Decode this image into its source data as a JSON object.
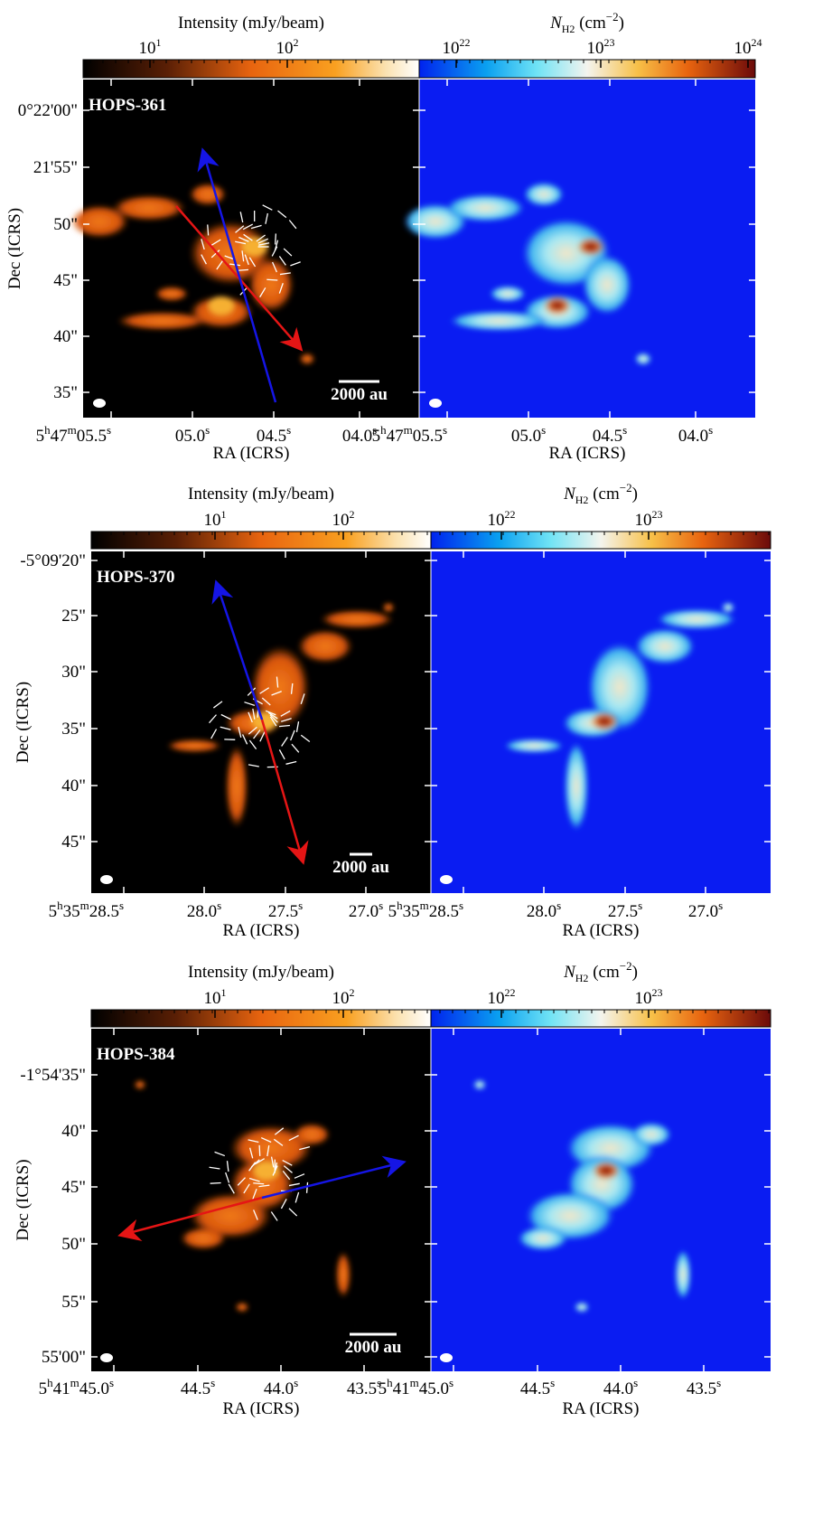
{
  "rows": [
    {
      "name": "HOPS-361",
      "scale_bar": "2000 au",
      "left_colorbar": {
        "label": "Intensity (mJy/beam)",
        "ticks": [
          {
            "base": "10",
            "exp": "1"
          },
          {
            "base": "10",
            "exp": "2"
          }
        ]
      },
      "right_colorbar": {
        "symbol": "N",
        "sub": "H2",
        "unit": " (cm",
        "unit_exp": "−2",
        "close": ")",
        "ticks": [
          {
            "base": "10",
            "exp": "22"
          },
          {
            "base": "10",
            "exp": "23"
          },
          {
            "base": "10",
            "exp": "24"
          }
        ]
      },
      "dec_label": "Dec (ICRS)",
      "ra_label": "RA (ICRS)",
      "dec_ticks": [
        "0°22'00\"",
        "21'55\"",
        "50\"",
        "45\"",
        "40\"",
        "35\""
      ],
      "ra_ticks": [
        [
          {
            "t": "5",
            "sup": "h"
          },
          {
            "t": "47",
            "sup": "m"
          },
          {
            "t": "05.5",
            "sup": "s"
          }
        ],
        [
          {
            "t": "05.0",
            "sup": "s"
          }
        ],
        [
          {
            "t": "04.5",
            "sup": "s"
          }
        ],
        [
          {
            "t": "04.0",
            "sup": "s"
          }
        ]
      ]
    },
    {
      "name": "HOPS-370",
      "scale_bar": "2000 au",
      "left_colorbar": {
        "label": "Intensity (mJy/beam)",
        "ticks": [
          {
            "base": "10",
            "exp": "1"
          },
          {
            "base": "10",
            "exp": "2"
          }
        ]
      },
      "right_colorbar": {
        "symbol": "N",
        "sub": "H2",
        "unit": " (cm",
        "unit_exp": "−2",
        "close": ")",
        "ticks": [
          {
            "base": "10",
            "exp": "22"
          },
          {
            "base": "10",
            "exp": "23"
          }
        ]
      },
      "dec_label": "Dec (ICRS)",
      "ra_label": "RA (ICRS)",
      "dec_ticks": [
        "-5°09'20\"",
        "25\"",
        "30\"",
        "35\"",
        "40\"",
        "45\""
      ],
      "ra_ticks": [
        [
          {
            "t": "5",
            "sup": "h"
          },
          {
            "t": "35",
            "sup": "m"
          },
          {
            "t": "28.5",
            "sup": "s"
          }
        ],
        [
          {
            "t": "28.0",
            "sup": "s"
          }
        ],
        [
          {
            "t": "27.5",
            "sup": "s"
          }
        ],
        [
          {
            "t": "27.0",
            "sup": "s"
          }
        ]
      ]
    },
    {
      "name": "HOPS-384",
      "scale_bar": "2000 au",
      "left_colorbar": {
        "label": "Intensity (mJy/beam)",
        "ticks": [
          {
            "base": "10",
            "exp": "1"
          },
          {
            "base": "10",
            "exp": "2"
          }
        ]
      },
      "right_colorbar": {
        "symbol": "N",
        "sub": "H2",
        "unit": " (cm",
        "unit_exp": "−2",
        "close": ")",
        "ticks": [
          {
            "base": "10",
            "exp": "22"
          },
          {
            "base": "10",
            "exp": "23"
          }
        ]
      },
      "dec_label": "Dec (ICRS)",
      "ra_label": "RA (ICRS)",
      "dec_ticks": [
        "-1°54'35\"",
        "40\"",
        "45\"",
        "50\"",
        "55\"",
        "55'00\""
      ],
      "ra_ticks": [
        [
          {
            "t": "5",
            "sup": "h"
          },
          {
            "t": "41",
            "sup": "m"
          },
          {
            "t": "45.0",
            "sup": "s"
          }
        ],
        [
          {
            "t": "44.5",
            "sup": "s"
          }
        ],
        [
          {
            "t": "44.0",
            "sup": "s"
          }
        ],
        [
          {
            "t": "43.5",
            "sup": "s"
          }
        ]
      ]
    }
  ]
}
